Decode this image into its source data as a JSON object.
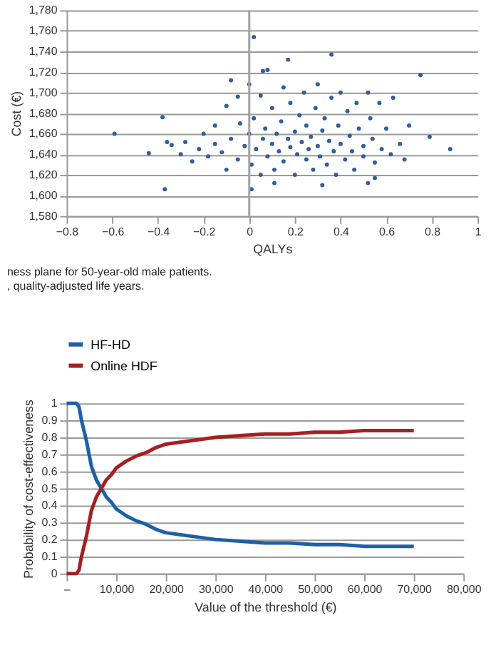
{
  "chart_data": [
    {
      "type": "scatter",
      "xlabel": "QALYs",
      "ylabel": "Cost (€)",
      "xlim": [
        -0.8,
        1
      ],
      "xticks": [
        -0.8,
        -0.6,
        -0.4,
        -0.2,
        0,
        0.2,
        0.4,
        0.6,
        0.8,
        1
      ],
      "ylim": [
        1580,
        1780
      ],
      "yticks": [
        {
          "value": 1580,
          "label": "1,580"
        },
        {
          "value": 1600,
          "label": "1,600"
        },
        {
          "value": 1620,
          "label": "1,620"
        },
        {
          "value": 1640,
          "label": "1,640"
        },
        {
          "value": 1660,
          "label": "1,660"
        },
        {
          "value": 1680,
          "label": "1,680"
        },
        {
          "value": 1700,
          "label": "1,700"
        },
        {
          "value": 1720,
          "label": "1,720"
        },
        {
          "value": 1740,
          "label": "1,740"
        },
        {
          "value": 1760,
          "label": "1,760"
        },
        {
          "value": 1780,
          "label": "1,780"
        }
      ],
      "grid": "y",
      "marker": "circle",
      "legend": false,
      "ref_lines": [
        {
          "axis": "x",
          "value": 0,
          "color": "#a0a0a0"
        }
      ],
      "annotations": [
        "ness plane for 50-year-old male patients.",
        ", quality-adjusted life years."
      ],
      "series": [
        {
          "color": "#2e5e9e",
          "x": [
            -0.59,
            -0.38,
            -0.44,
            0.02,
            0.17,
            0.36,
            0.75,
            0.06,
            0.08,
            -0.08,
            0.88,
            0.79,
            -0.34,
            -0.36,
            -0.37,
            0.01,
            0.32,
            0.52,
            0.11,
            0.55,
            -0.3,
            -0.28,
            -0.25,
            -0.22,
            -0.2,
            -0.18,
            -0.15,
            -0.15,
            -0.12,
            -0.1,
            -0.1,
            -0.08,
            -0.05,
            -0.05,
            -0.04,
            -0.02,
            0,
            0,
            0.01,
            0.02,
            0.03,
            0.05,
            0.05,
            0.06,
            0.07,
            0.08,
            0.1,
            0.1,
            0.11,
            0.12,
            0.13,
            0.14,
            0.15,
            0.15,
            0.17,
            0.18,
            0.18,
            0.2,
            0.2,
            0.21,
            0.22,
            0.23,
            0.24,
            0.25,
            0.25,
            0.26,
            0.27,
            0.28,
            0.29,
            0.3,
            0.3,
            0.31,
            0.32,
            0.33,
            0.34,
            0.35,
            0.36,
            0.37,
            0.38,
            0.39,
            0.4,
            0.4,
            0.42,
            0.43,
            0.44,
            0.45,
            0.46,
            0.47,
            0.48,
            0.5,
            0.5,
            0.52,
            0.53,
            0.54,
            0.55,
            0.57,
            0.58,
            0.6,
            0.62,
            0.63,
            0.66,
            0.68,
            0.7
          ],
          "values": [
            1660,
            1676,
            1641,
            1754,
            1732,
            1737,
            1717,
            1721,
            1722,
            1712,
            1645,
            1657,
            1649,
            1652,
            1606,
            1606,
            1610,
            1612,
            1612,
            1617,
            1640,
            1652,
            1633,
            1645,
            1660,
            1638,
            1668,
            1650,
            1642,
            1687,
            1625,
            1655,
            1696,
            1635,
            1670,
            1648,
            1708,
            1660,
            1630,
            1675,
            1645,
            1620,
            1697,
            1655,
            1665,
            1638,
            1685,
            1650,
            1625,
            1660,
            1643,
            1672,
            1705,
            1633,
            1655,
            1690,
            1647,
            1620,
            1662,
            1640,
            1678,
            1652,
            1700,
            1635,
            1668,
            1645,
            1657,
            1625,
            1685,
            1708,
            1648,
            1638,
            1663,
            1675,
            1630,
            1653,
            1695,
            1643,
            1620,
            1668,
            1700,
            1650,
            1635,
            1682,
            1658,
            1643,
            1625,
            1690,
            1665,
            1648,
            1638,
            1700,
            1675,
            1655,
            1632,
            1690,
            1645,
            1665,
            1640,
            1695,
            1650,
            1635,
            1668
          ]
        }
      ]
    },
    {
      "type": "line",
      "xlabel": "Value of the threshold (€)",
      "ylabel": "Probability of cost-effectiveness",
      "xlim": [
        0,
        80000
      ],
      "xticks": [
        {
          "value": 0,
          "label": "–"
        },
        {
          "value": 10000,
          "label": "10,000"
        },
        {
          "value": 20000,
          "label": "20,000"
        },
        {
          "value": 30000,
          "label": "30,000"
        },
        {
          "value": 40000,
          "label": "40,000"
        },
        {
          "value": 50000,
          "label": "50,000"
        },
        {
          "value": 60000,
          "label": "60,000"
        },
        {
          "value": 70000,
          "label": "70,000"
        },
        {
          "value": 80000,
          "label": "80,000"
        }
      ],
      "ylim": [
        0,
        1
      ],
      "yticks": [
        0,
        0.1,
        0.2,
        0.3,
        0.4,
        0.5,
        0.6,
        0.7,
        0.8,
        0.9,
        1
      ],
      "grid": "y",
      "legend": "top",
      "marker": "none",
      "line_style": "solid",
      "x": [
        0,
        1000,
        2000,
        2500,
        3000,
        4000,
        5000,
        6000,
        7000,
        8000,
        9000,
        10000,
        12000,
        14000,
        16000,
        18000,
        20000,
        25000,
        30000,
        35000,
        40000,
        45000,
        50000,
        55000,
        60000,
        65000,
        70000
      ],
      "series": [
        {
          "name": "HF-HD",
          "color": "#1f5fa8",
          "values": [
            1,
            1,
            1,
            0.98,
            0.9,
            0.78,
            0.63,
            0.55,
            0.5,
            0.45,
            0.42,
            0.38,
            0.34,
            0.31,
            0.29,
            0.26,
            0.24,
            0.22,
            0.2,
            0.19,
            0.18,
            0.18,
            0.17,
            0.17,
            0.16,
            0.16,
            0.16
          ]
        },
        {
          "name": "Online HDF",
          "color": "#a52020",
          "values": [
            0,
            0,
            0,
            0.02,
            0.1,
            0.22,
            0.37,
            0.45,
            0.5,
            0.55,
            0.58,
            0.62,
            0.66,
            0.69,
            0.71,
            0.74,
            0.76,
            0.78,
            0.8,
            0.81,
            0.82,
            0.82,
            0.83,
            0.83,
            0.84,
            0.84,
            0.84
          ]
        }
      ]
    }
  ]
}
